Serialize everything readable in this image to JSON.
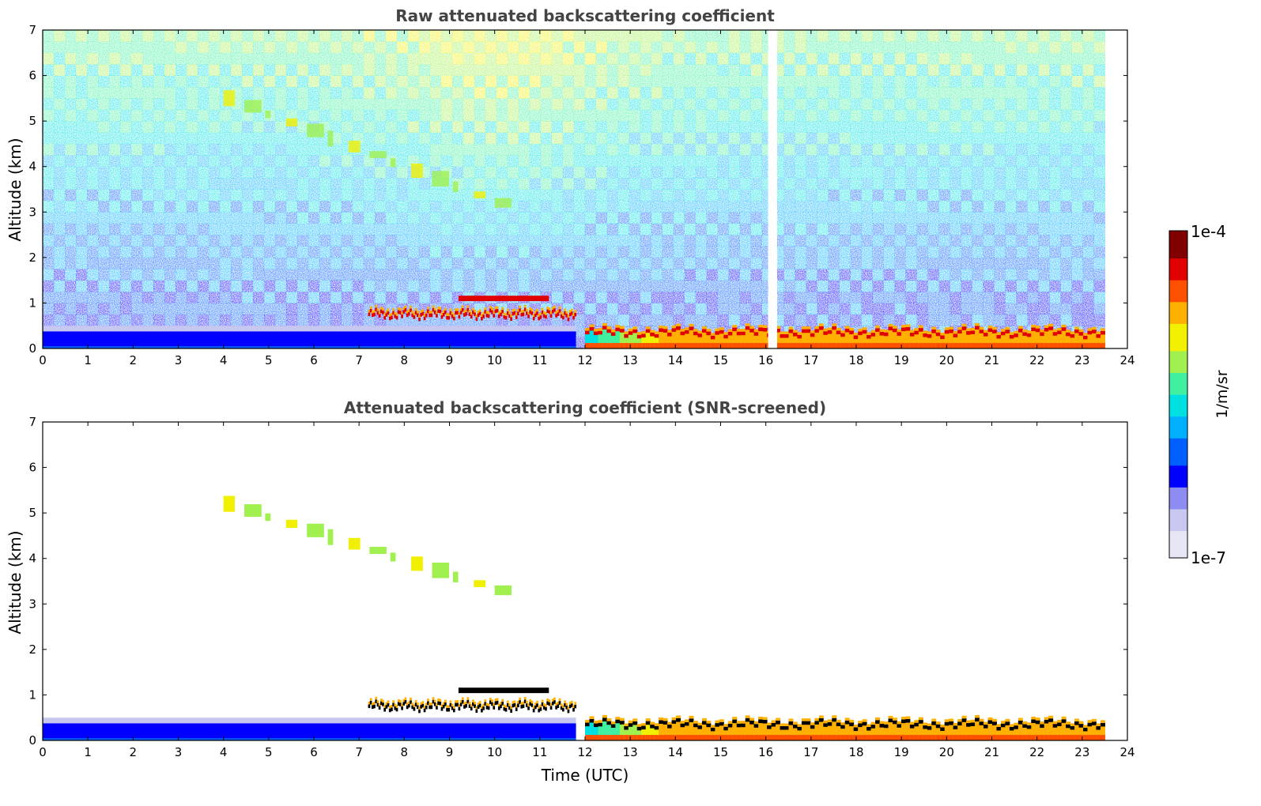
{
  "chart_data": [
    {
      "type": "heatmap",
      "title": "Raw attenuated backscattering coefficient",
      "xlabel": "",
      "ylabel": "Altitude (km)",
      "xlim": [
        0,
        24
      ],
      "ylim": [
        0,
        7
      ],
      "x_ticks": [
        "0",
        "1",
        "2",
        "3",
        "4",
        "5",
        "6",
        "7",
        "8",
        "9",
        "10",
        "11",
        "12",
        "13",
        "14",
        "15",
        "16",
        "17",
        "18",
        "19",
        "20",
        "21",
        "22",
        "23",
        "24"
      ],
      "y_ticks": [
        "0",
        "1",
        "2",
        "3",
        "4",
        "5",
        "6",
        "7"
      ],
      "data_coverage_hours": [
        0,
        23.5
      ],
      "screened": false,
      "features": [
        {
          "kind": "surface_layer_low",
          "t_start": 0,
          "t_end": 11.8,
          "top_km": 0.5,
          "level": "low"
        },
        {
          "kind": "boundary_layer_top",
          "t_start": 7.2,
          "t_end": 11.8,
          "top_km": 0.75,
          "level": "high"
        },
        {
          "kind": "elevated_layer",
          "t_start": 9.2,
          "t_end": 11.2,
          "altitude_km": 1.1,
          "level": "high"
        },
        {
          "kind": "boundary_layer_top",
          "t_start": 12,
          "t_end": 23.5,
          "top_km": 0.35,
          "level": "high"
        },
        {
          "kind": "elevated_aerosol_band",
          "t_start": 4,
          "t_end": 10,
          "altitude_km_start": 5.5,
          "altitude_km_end": 3.2,
          "level": "medium"
        },
        {
          "kind": "missing_data_gap",
          "t_start": 16.05,
          "t_end": 16.25
        }
      ]
    },
    {
      "type": "heatmap",
      "title": "Attenuated backscattering coefficient (SNR-screened)",
      "xlabel": "Time (UTC)",
      "ylabel": "Altitude (km)",
      "xlim": [
        0,
        24
      ],
      "ylim": [
        0,
        7
      ],
      "x_ticks": [
        "0",
        "1",
        "2",
        "3",
        "4",
        "5",
        "6",
        "7",
        "8",
        "9",
        "10",
        "11",
        "12",
        "13",
        "14",
        "15",
        "16",
        "17",
        "18",
        "19",
        "20",
        "21",
        "22",
        "23",
        "24"
      ],
      "y_ticks": [
        "0",
        "1",
        "2",
        "3",
        "4",
        "5",
        "6",
        "7"
      ],
      "data_coverage_hours": [
        0,
        23.5
      ],
      "screened": true,
      "features": [
        {
          "kind": "surface_layer_low",
          "t_start": 0,
          "t_end": 11.8,
          "top_km": 0.5,
          "level": "low"
        },
        {
          "kind": "boundary_layer_top",
          "t_start": 7.2,
          "t_end": 11.8,
          "top_km": 0.75,
          "level": "high"
        },
        {
          "kind": "elevated_layer",
          "t_start": 9.2,
          "t_end": 11.2,
          "altitude_km": 1.1,
          "level": "high"
        },
        {
          "kind": "boundary_layer_top",
          "t_start": 12,
          "t_end": 23.5,
          "top_km": 0.35,
          "level": "high"
        },
        {
          "kind": "elevated_aerosol_band",
          "t_start": 4,
          "t_end": 10,
          "altitude_km_start": 5.2,
          "altitude_km_end": 3.3,
          "level": "medium"
        }
      ]
    }
  ],
  "colorbar": {
    "max_label": "1e-4",
    "min_label": "1e-7",
    "unit_label": "1/m/sr",
    "scale": "log",
    "range": [
      1e-07,
      0.0001
    ],
    "colormap": "jet",
    "colors": [
      "#e6e6f7",
      "#c7c7f0",
      "#8c8cf2",
      "#0000ff",
      "#0060ff",
      "#00b0ff",
      "#00e0e0",
      "#40f0a0",
      "#a0f050",
      "#f0f000",
      "#ffb000",
      "#ff5000",
      "#e00000",
      "#800000"
    ]
  }
}
